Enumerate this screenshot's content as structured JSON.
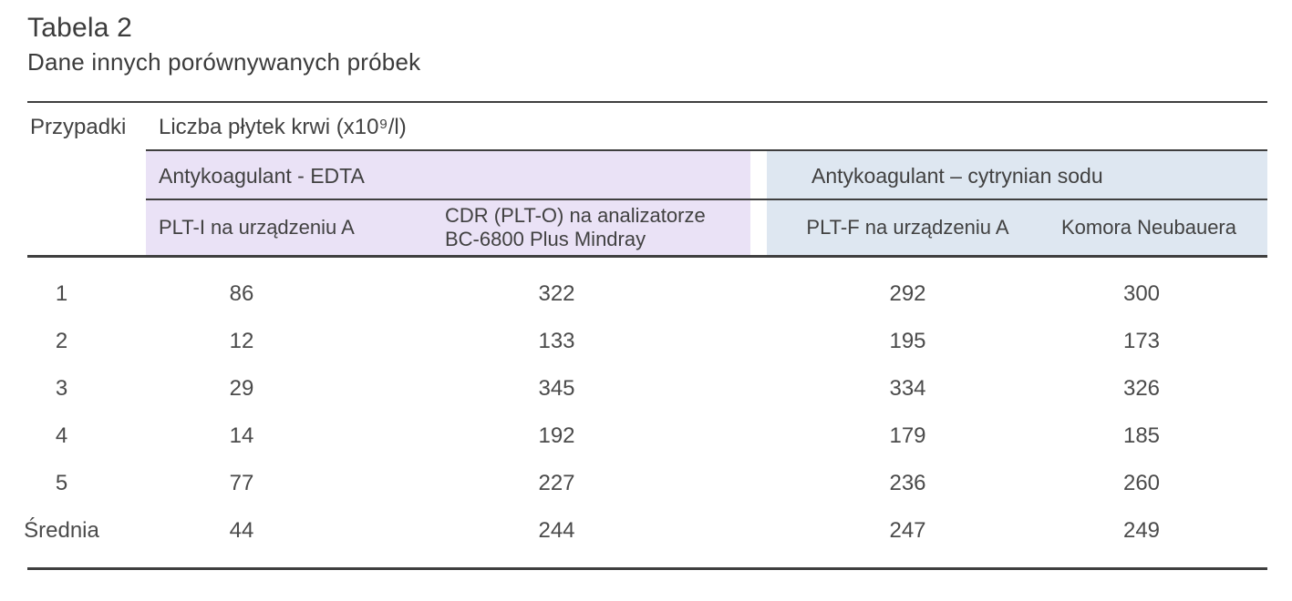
{
  "title": "Tabela 2",
  "subtitle": "Dane innych porównywanych próbek",
  "table": {
    "col_header_cases": "Przypadki",
    "col_header_measure": "Liczba płytek krwi (x10⁹/l)",
    "groups": [
      {
        "label": "Antykoagulant - EDTA",
        "color": "#eae2f6"
      },
      {
        "label": "Antykoagulant – cytrynian sodu",
        "color": "#dee7f1"
      }
    ],
    "subheaders": [
      "PLT-I na urządzeniu A",
      "CDR (PLT-O) na analizatorze\nBC-6800 Plus Mindray",
      "PLT-F na urządzeniu A",
      "Komora Neubauera"
    ],
    "rows": [
      {
        "label": "1",
        "values": [
          86,
          322,
          292,
          300
        ]
      },
      {
        "label": "2",
        "values": [
          12,
          133,
          195,
          173
        ]
      },
      {
        "label": "3",
        "values": [
          29,
          345,
          334,
          326
        ]
      },
      {
        "label": "4",
        "values": [
          14,
          192,
          179,
          185
        ]
      },
      {
        "label": "5",
        "values": [
          77,
          227,
          236,
          260
        ]
      },
      {
        "label": "Średnia",
        "values": [
          44,
          244,
          247,
          249
        ]
      }
    ],
    "rule_color": "#3f3f3f"
  }
}
